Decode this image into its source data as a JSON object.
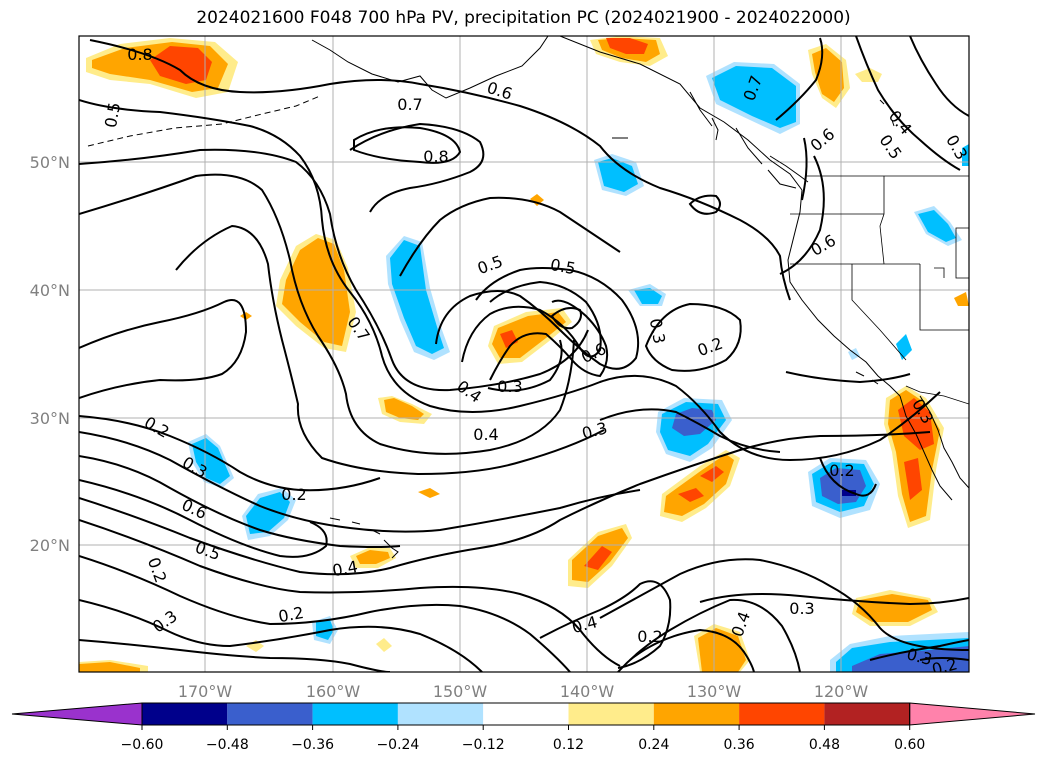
{
  "title": "2024021600 F048 700 hPa PV, precipitation PC (2024021900 - 2024022000)",
  "lat_labels": [
    "50°N",
    "40°N",
    "30°N",
    "20°N"
  ],
  "lon_labels": [
    "170°W",
    "160°W",
    "150°W",
    "140°W",
    "130°W",
    "120°W"
  ],
  "contour_labels": [
    "0.8",
    "0.5",
    "0.7",
    "0.6",
    "0.8",
    "0.7",
    "0.6",
    "0.4",
    "0.5",
    "0.3",
    "0.5",
    "0.5",
    "0.7",
    "0.3",
    "0.6",
    "0.2",
    "0.4",
    "0.3",
    "0.4",
    "0.3",
    "0.2",
    "0.3",
    "0.6",
    "0.2",
    "0.5",
    "0.4",
    "0.2",
    "0.2",
    "0.3",
    "0.2",
    "0.4",
    "0.3",
    "0.4",
    "0.3",
    "0.2",
    "0.6",
    "0.3",
    "0.2"
  ],
  "colorbar": {
    "ticks": [
      "−0.60",
      "−0.48",
      "−0.36",
      "−0.24",
      "−0.12",
      "0.12",
      "0.24",
      "0.36",
      "0.48",
      "0.60"
    ],
    "colors": [
      "#9a32cd",
      "#00008b",
      "#3a5fcd",
      "#00bfff",
      "#b0e2ff",
      "#ffffff",
      "#ffec8b",
      "#ffa500",
      "#ff4500",
      "#b22222",
      "#ff82ab"
    ]
  }
}
